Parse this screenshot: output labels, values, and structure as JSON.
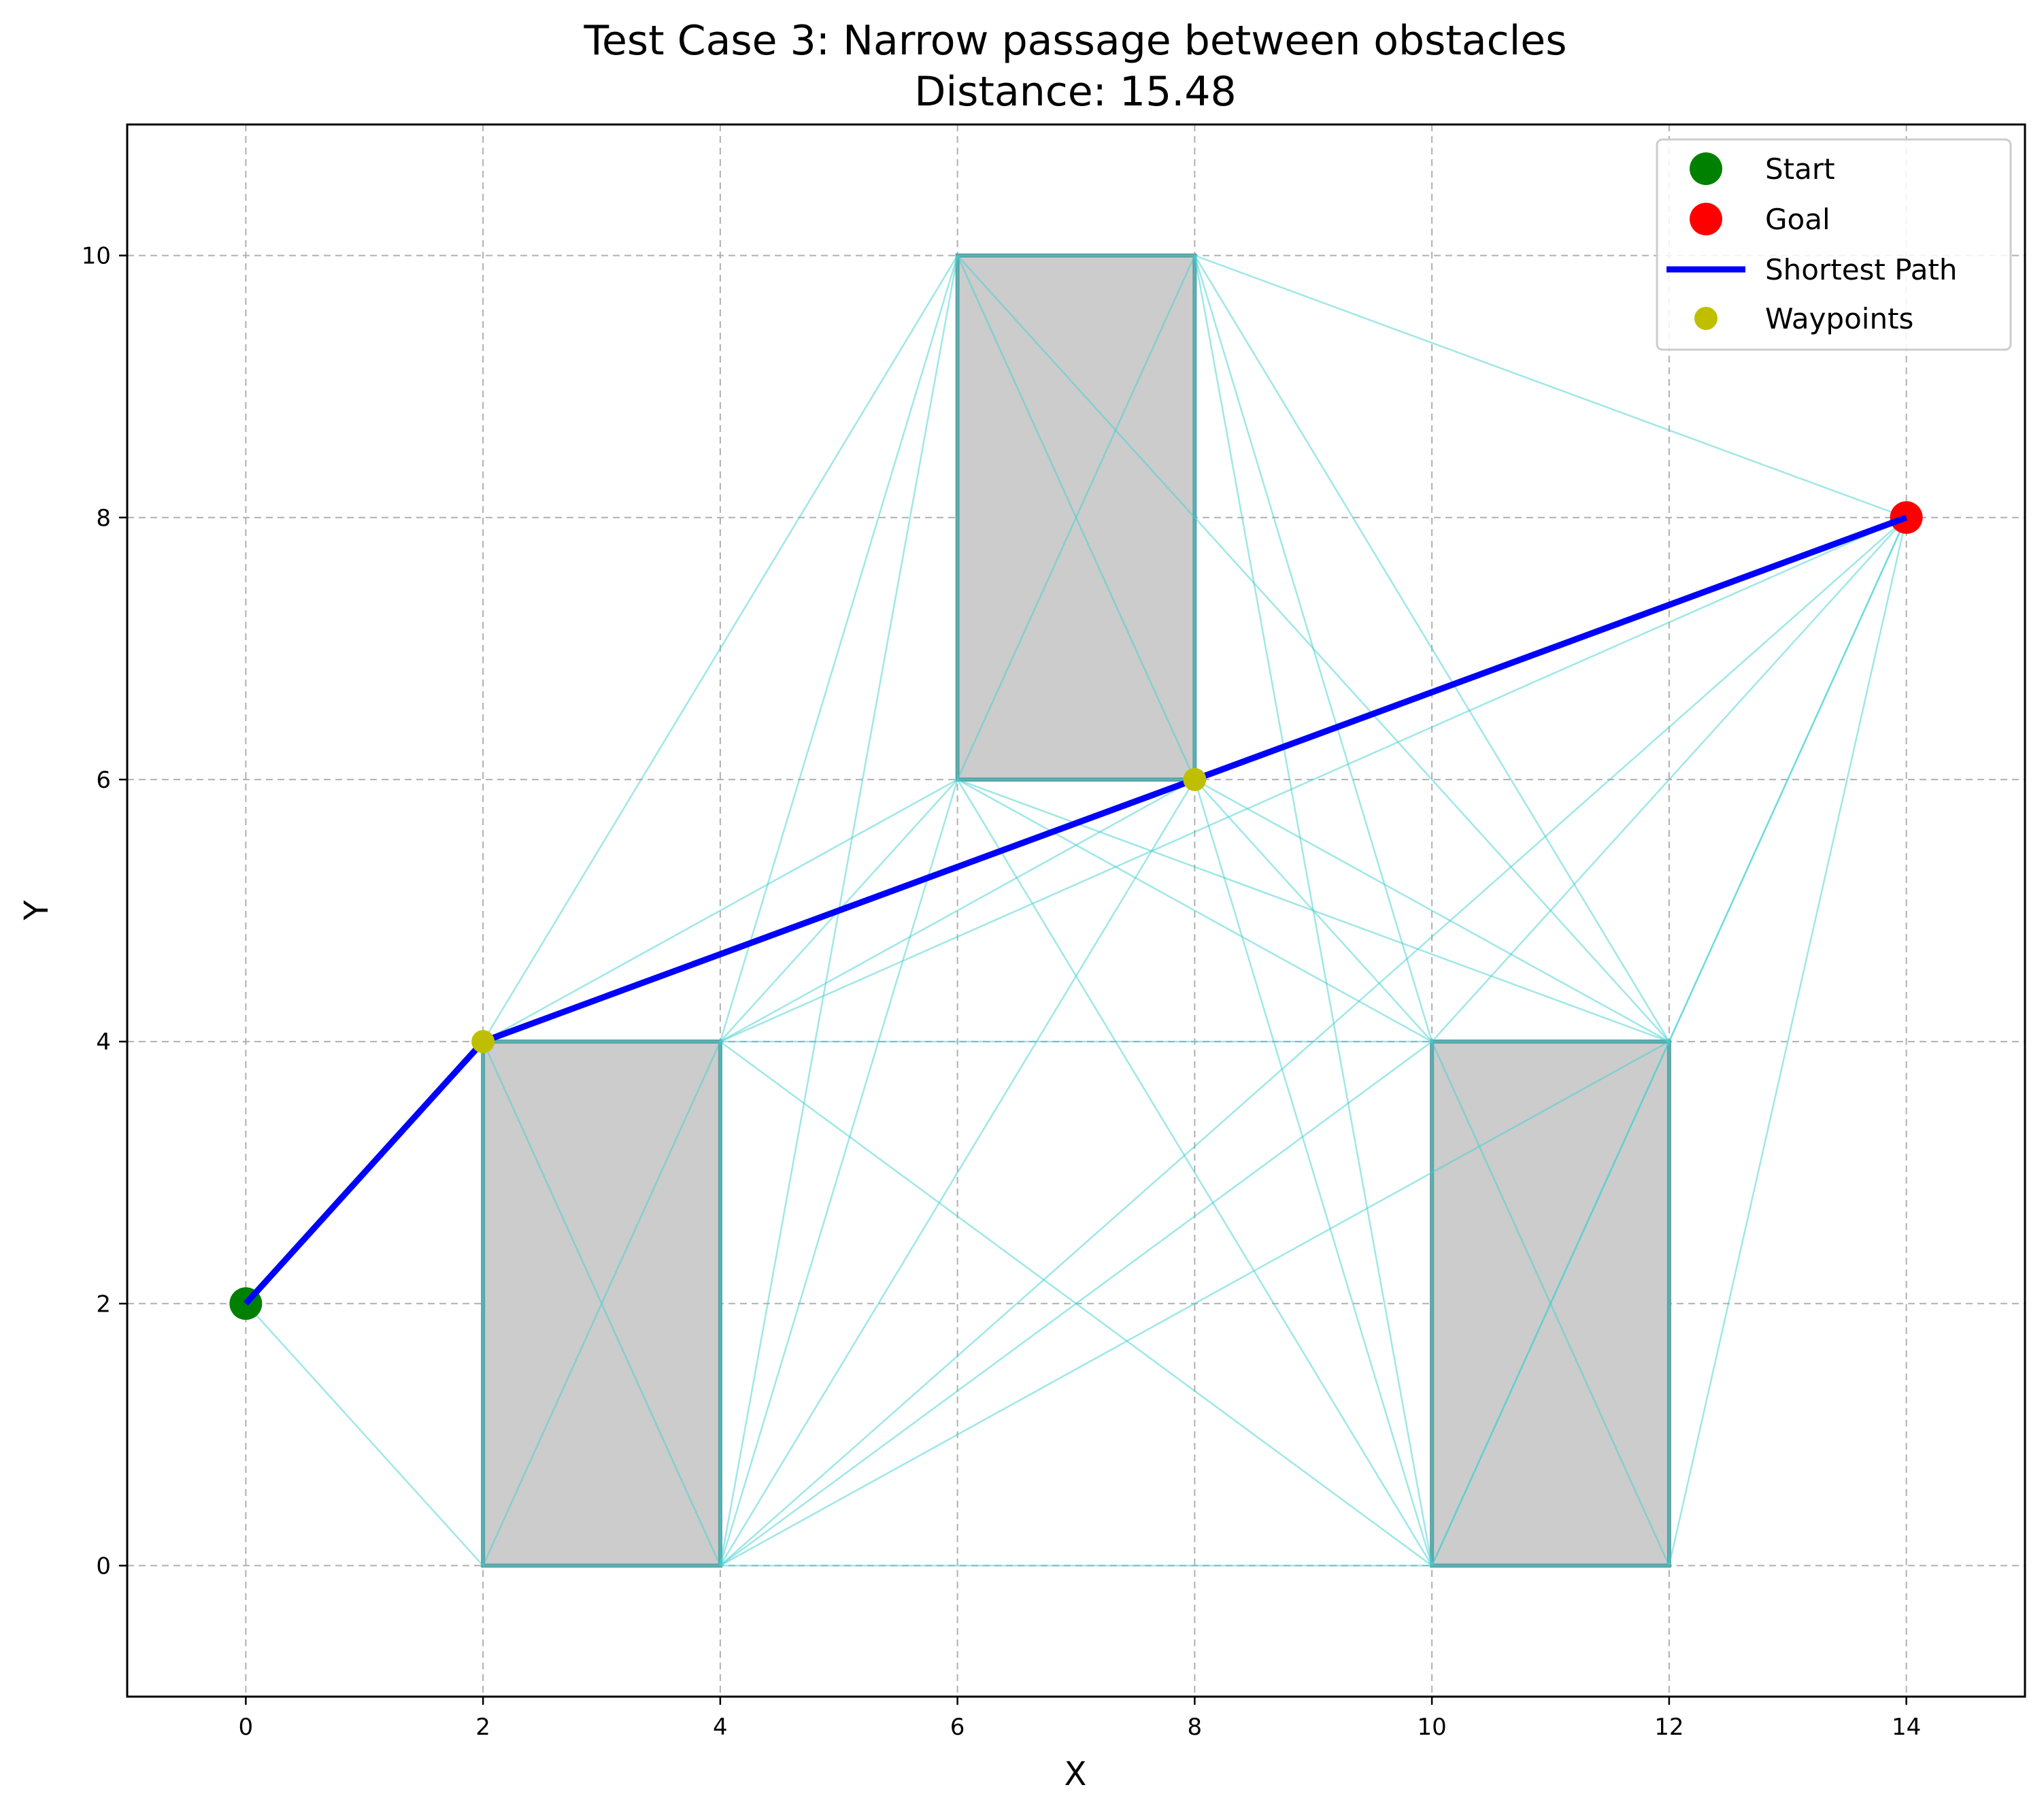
{
  "chart_data": {
    "type": "scatter",
    "title": "Test Case 3: Narrow passage between obstacles",
    "subtitle": "Distance: 15.48",
    "xlabel": "X",
    "ylabel": "Y",
    "xlim": [
      -1,
      15
    ],
    "ylim": [
      -1,
      11
    ],
    "xticks": [
      0,
      2,
      4,
      6,
      8,
      10,
      12,
      14
    ],
    "yticks": [
      0,
      2,
      4,
      6,
      8,
      10
    ],
    "grid": true,
    "legend_placement": "top-right",
    "obstacles": [
      {
        "x0": 2,
        "y0": 0,
        "x1": 4,
        "y1": 4
      },
      {
        "x0": 6,
        "y0": 6,
        "x1": 8,
        "y1": 10
      },
      {
        "x0": 10,
        "y0": 0,
        "x1": 12,
        "y1": 4
      }
    ],
    "visibility_edges": [
      [
        [
          0,
          2
        ],
        [
          2,
          4
        ]
      ],
      [
        [
          0,
          2
        ],
        [
          2,
          0
        ]
      ],
      [
        [
          2,
          4
        ],
        [
          4,
          4
        ]
      ],
      [
        [
          2,
          4
        ],
        [
          4,
          0
        ]
      ],
      [
        [
          2,
          4
        ],
        [
          6,
          10
        ]
      ],
      [
        [
          2,
          4
        ],
        [
          6,
          6
        ]
      ],
      [
        [
          2,
          0
        ],
        [
          4,
          0
        ]
      ],
      [
        [
          2,
          0
        ],
        [
          4,
          4
        ]
      ],
      [
        [
          2,
          0
        ],
        [
          2,
          4
        ]
      ],
      [
        [
          4,
          4
        ],
        [
          4,
          0
        ]
      ],
      [
        [
          4,
          4
        ],
        [
          6,
          10
        ]
      ],
      [
        [
          4,
          4
        ],
        [
          6,
          6
        ]
      ],
      [
        [
          4,
          4
        ],
        [
          8,
          6
        ]
      ],
      [
        [
          4,
          4
        ],
        [
          10,
          4
        ]
      ],
      [
        [
          4,
          4
        ],
        [
          10,
          0
        ]
      ],
      [
        [
          4,
          4
        ],
        [
          14,
          8
        ]
      ],
      [
        [
          4,
          0
        ],
        [
          10,
          0
        ]
      ],
      [
        [
          4,
          0
        ],
        [
          6,
          10
        ]
      ],
      [
        [
          4,
          0
        ],
        [
          6,
          6
        ]
      ],
      [
        [
          4,
          0
        ],
        [
          8,
          6
        ]
      ],
      [
        [
          4,
          0
        ],
        [
          10,
          4
        ]
      ],
      [
        [
          4,
          0
        ],
        [
          12,
          4
        ]
      ],
      [
        [
          4,
          0
        ],
        [
          14,
          8
        ]
      ],
      [
        [
          6,
          10
        ],
        [
          8,
          10
        ]
      ],
      [
        [
          6,
          10
        ],
        [
          6,
          6
        ]
      ],
      [
        [
          6,
          10
        ],
        [
          8,
          6
        ]
      ],
      [
        [
          6,
          10
        ],
        [
          12,
          4
        ]
      ],
      [
        [
          6,
          6
        ],
        [
          8,
          6
        ]
      ],
      [
        [
          6,
          6
        ],
        [
          8,
          10
        ]
      ],
      [
        [
          6,
          6
        ],
        [
          10,
          4
        ]
      ],
      [
        [
          6,
          6
        ],
        [
          12,
          4
        ]
      ],
      [
        [
          6,
          6
        ],
        [
          10,
          0
        ]
      ],
      [
        [
          8,
          10
        ],
        [
          8,
          6
        ]
      ],
      [
        [
          8,
          10
        ],
        [
          14,
          8
        ]
      ],
      [
        [
          8,
          10
        ],
        [
          10,
          4
        ]
      ],
      [
        [
          8,
          10
        ],
        [
          10,
          0
        ]
      ],
      [
        [
          8,
          10
        ],
        [
          12,
          4
        ]
      ],
      [
        [
          8,
          6
        ],
        [
          10,
          4
        ]
      ],
      [
        [
          8,
          6
        ],
        [
          12,
          4
        ]
      ],
      [
        [
          8,
          6
        ],
        [
          10,
          0
        ]
      ],
      [
        [
          10,
          4
        ],
        [
          12,
          4
        ]
      ],
      [
        [
          10,
          4
        ],
        [
          10,
          0
        ]
      ],
      [
        [
          10,
          4
        ],
        [
          12,
          0
        ]
      ],
      [
        [
          10,
          4
        ],
        [
          14,
          8
        ]
      ],
      [
        [
          10,
          0
        ],
        [
          12,
          0
        ]
      ],
      [
        [
          10,
          0
        ],
        [
          12,
          4
        ]
      ],
      [
        [
          10,
          0
        ],
        [
          14,
          8
        ]
      ],
      [
        [
          12,
          4
        ],
        [
          12,
          0
        ]
      ],
      [
        [
          12,
          4
        ],
        [
          14,
          8
        ]
      ],
      [
        [
          12,
          0
        ],
        [
          14,
          8
        ]
      ]
    ],
    "series": [
      {
        "name": "Start",
        "points": [
          [
            0,
            2
          ]
        ],
        "color": "#008000",
        "marker": "circle"
      },
      {
        "name": "Goal",
        "points": [
          [
            14,
            8
          ]
        ],
        "color": "#ff0000",
        "marker": "circle"
      },
      {
        "name": "Shortest Path",
        "points": [
          [
            0,
            2
          ],
          [
            2,
            4
          ],
          [
            8,
            6
          ],
          [
            14,
            8
          ]
        ],
        "color": "#0000ff",
        "marker": "line"
      },
      {
        "name": "Waypoints",
        "points": [
          [
            2,
            4
          ],
          [
            8,
            6
          ]
        ],
        "color": "#bfbf00",
        "marker": "circle"
      }
    ],
    "colors": {
      "obstacle_fill": "#cccccc",
      "obstacle_edge": "#5f9ea0",
      "edge_color": "#40d0d0",
      "grid_color": "#b0b0b0"
    }
  }
}
